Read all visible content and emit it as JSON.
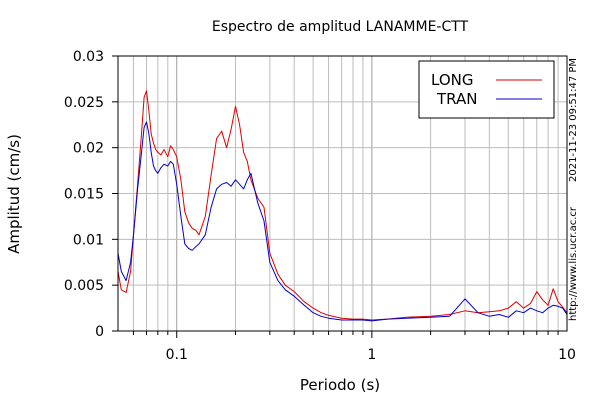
{
  "chart_data": {
    "type": "line",
    "title": "Espectro de amplitud LANAMME-CTT",
    "xlabel": "Periodo (s)",
    "ylabel": "Amplitud (cm/s)",
    "x_scale": "log",
    "xlim": [
      0.05,
      10
    ],
    "ylim": [
      0,
      0.03
    ],
    "grid": true,
    "legend_position": "top-right",
    "x_ticks": [
      {
        "value": 0.1,
        "label": "0.1"
      },
      {
        "value": 1,
        "label": "1"
      },
      {
        "value": 10,
        "label": "10"
      }
    ],
    "y_ticks": [
      {
        "value": 0,
        "label": "0"
      },
      {
        "value": 0.005,
        "label": "0.005"
      },
      {
        "value": 0.01,
        "label": "0.01"
      },
      {
        "value": 0.015,
        "label": "0.015"
      },
      {
        "value": 0.02,
        "label": "0.02"
      },
      {
        "value": 0.025,
        "label": "0.025"
      },
      {
        "value": 0.03,
        "label": "0.03"
      }
    ],
    "series": [
      {
        "name": "LONG",
        "color": "#dd0000",
        "x": [
          0.05,
          0.052,
          0.055,
          0.058,
          0.06,
          0.063,
          0.066,
          0.068,
          0.07,
          0.072,
          0.074,
          0.076,
          0.078,
          0.08,
          0.083,
          0.086,
          0.09,
          0.093,
          0.096,
          0.1,
          0.105,
          0.11,
          0.115,
          0.12,
          0.125,
          0.13,
          0.14,
          0.15,
          0.16,
          0.17,
          0.18,
          0.19,
          0.2,
          0.21,
          0.22,
          0.23,
          0.24,
          0.26,
          0.28,
          0.3,
          0.33,
          0.36,
          0.4,
          0.45,
          0.5,
          0.55,
          0.6,
          0.7,
          0.8,
          0.9,
          1.0,
          1.2,
          1.5,
          2.0,
          2.5,
          3.0,
          3.5,
          4.0,
          4.5,
          5.0,
          5.5,
          6.0,
          6.5,
          7.0,
          7.5,
          8.0,
          8.5,
          9.0,
          9.5,
          10
        ],
        "y": [
          0.0065,
          0.0045,
          0.0042,
          0.0065,
          0.0105,
          0.016,
          0.0215,
          0.0255,
          0.0262,
          0.024,
          0.0215,
          0.0205,
          0.0198,
          0.0195,
          0.0192,
          0.0198,
          0.019,
          0.0202,
          0.0198,
          0.019,
          0.0165,
          0.013,
          0.0118,
          0.0112,
          0.011,
          0.0105,
          0.0125,
          0.017,
          0.021,
          0.0218,
          0.02,
          0.022,
          0.0245,
          0.0225,
          0.0195,
          0.0185,
          0.0165,
          0.0145,
          0.0135,
          0.0085,
          0.0062,
          0.005,
          0.0043,
          0.0032,
          0.0025,
          0.002,
          0.0017,
          0.0014,
          0.0013,
          0.0013,
          0.0012,
          0.0013,
          0.0015,
          0.0016,
          0.0018,
          0.0022,
          0.002,
          0.0021,
          0.0022,
          0.0025,
          0.0032,
          0.0025,
          0.003,
          0.0043,
          0.0034,
          0.0028,
          0.0046,
          0.0032,
          0.0026,
          0.002
        ]
      },
      {
        "name": "TRAN",
        "color": "#0000cc",
        "x": [
          0.05,
          0.052,
          0.055,
          0.058,
          0.06,
          0.063,
          0.066,
          0.068,
          0.07,
          0.072,
          0.074,
          0.076,
          0.078,
          0.08,
          0.083,
          0.086,
          0.09,
          0.093,
          0.096,
          0.1,
          0.105,
          0.11,
          0.115,
          0.12,
          0.125,
          0.13,
          0.14,
          0.15,
          0.16,
          0.17,
          0.18,
          0.19,
          0.2,
          0.21,
          0.22,
          0.23,
          0.24,
          0.26,
          0.28,
          0.3,
          0.33,
          0.36,
          0.4,
          0.45,
          0.5,
          0.55,
          0.6,
          0.7,
          0.8,
          0.9,
          1.0,
          1.2,
          1.5,
          2.0,
          2.5,
          3.0,
          3.5,
          4.0,
          4.5,
          5.0,
          5.5,
          6.0,
          6.5,
          7.0,
          7.5,
          8.0,
          8.5,
          9.0,
          9.5,
          10
        ],
        "y": [
          0.0085,
          0.0065,
          0.0055,
          0.0075,
          0.0105,
          0.0155,
          0.0195,
          0.0222,
          0.0228,
          0.0215,
          0.0195,
          0.018,
          0.0175,
          0.0172,
          0.0178,
          0.0182,
          0.018,
          0.0185,
          0.0182,
          0.016,
          0.0125,
          0.0095,
          0.009,
          0.0088,
          0.0092,
          0.0095,
          0.0105,
          0.0135,
          0.0155,
          0.016,
          0.0162,
          0.0158,
          0.0165,
          0.016,
          0.0155,
          0.0165,
          0.0172,
          0.014,
          0.012,
          0.0075,
          0.0055,
          0.0045,
          0.0038,
          0.0028,
          0.002,
          0.0016,
          0.0014,
          0.0012,
          0.0012,
          0.0012,
          0.0011,
          0.0013,
          0.0014,
          0.0015,
          0.0016,
          0.0035,
          0.002,
          0.0016,
          0.0018,
          0.0015,
          0.0022,
          0.002,
          0.0025,
          0.0022,
          0.002,
          0.0025,
          0.0028,
          0.0027,
          0.0025,
          0.0018
        ]
      }
    ]
  },
  "side_text": {
    "timestamp": "2021-11-23 09:51:47 PM",
    "url": "http://www.lis.ucr.ac.cr"
  }
}
